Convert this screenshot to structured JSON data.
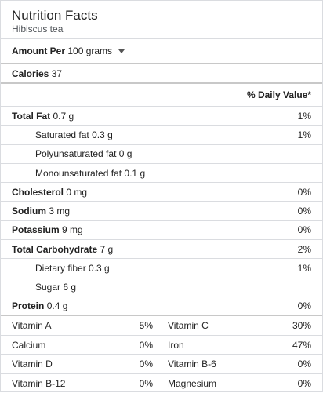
{
  "header": {
    "title": "Nutrition Facts",
    "subtitle": "Hibiscus tea"
  },
  "amount": {
    "label": "Amount Per",
    "unit": "100 grams"
  },
  "calories": {
    "label": "Calories",
    "value": "37"
  },
  "daily_value_header": "% Daily Value*",
  "nutrients": [
    {
      "label": "Total Fat",
      "amount": "0.7 g",
      "dv": "1%",
      "bold": true,
      "indent": false
    },
    {
      "label": "Saturated fat",
      "amount": "0.3 g",
      "dv": "1%",
      "bold": false,
      "indent": true
    },
    {
      "label": "Polyunsaturated fat",
      "amount": "0 g",
      "dv": "",
      "bold": false,
      "indent": true
    },
    {
      "label": "Monounsaturated fat",
      "amount": "0.1 g",
      "dv": "",
      "bold": false,
      "indent": true
    },
    {
      "label": "Cholesterol",
      "amount": "0 mg",
      "dv": "0%",
      "bold": true,
      "indent": false
    },
    {
      "label": "Sodium",
      "amount": "3 mg",
      "dv": "0%",
      "bold": true,
      "indent": false
    },
    {
      "label": "Potassium",
      "amount": "9 mg",
      "dv": "0%",
      "bold": true,
      "indent": false
    },
    {
      "label": "Total Carbohydrate",
      "amount": "7 g",
      "dv": "2%",
      "bold": true,
      "indent": false
    },
    {
      "label": "Dietary fiber",
      "amount": "0.3 g",
      "dv": "1%",
      "bold": false,
      "indent": true
    },
    {
      "label": "Sugar",
      "amount": "6 g",
      "dv": "",
      "bold": false,
      "indent": true
    },
    {
      "label": "Protein",
      "amount": "0.4 g",
      "dv": "0%",
      "bold": true,
      "indent": false
    }
  ],
  "vitamins": [
    {
      "label": "Vitamin A",
      "value": "5%"
    },
    {
      "label": "Vitamin C",
      "value": "30%"
    },
    {
      "label": "Calcium",
      "value": "0%"
    },
    {
      "label": "Iron",
      "value": "47%"
    },
    {
      "label": "Vitamin D",
      "value": "0%"
    },
    {
      "label": "Vitamin B-6",
      "value": "0%"
    },
    {
      "label": "Vitamin B-12",
      "value": "0%"
    },
    {
      "label": "Magnesium",
      "value": "0%"
    }
  ]
}
